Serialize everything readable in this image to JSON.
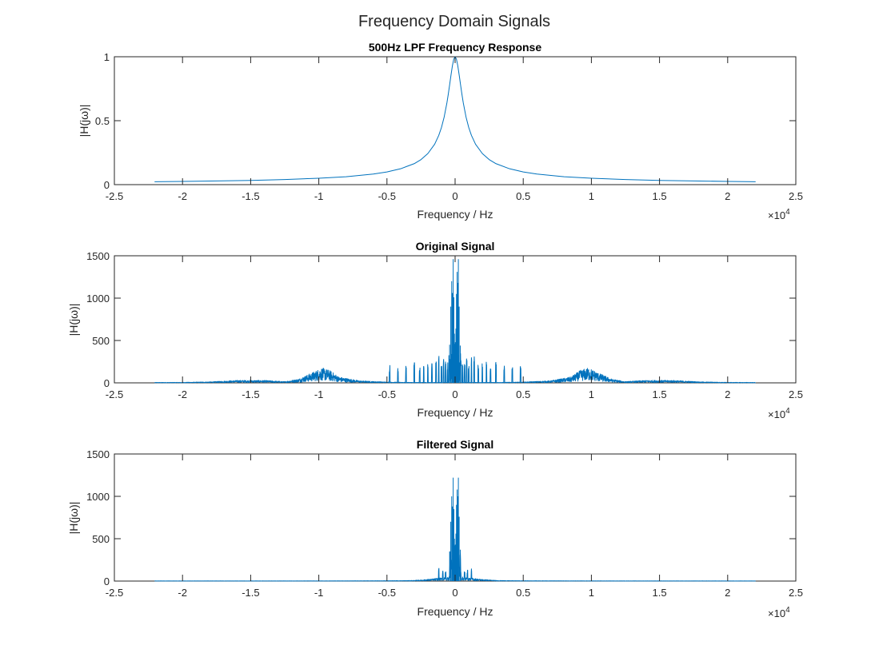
{
  "figure_title": "Frequency Domain Signals",
  "colors": {
    "series": "#0072BD",
    "axis": "#262626",
    "background": "#ffffff"
  },
  "chart_data": [
    {
      "type": "line",
      "title": "500Hz LPF Frequency Response",
      "xlabel": "Frequency / Hz",
      "ylabel": "|H(jω)|",
      "xlim": [
        -25000,
        25000
      ],
      "ylim": [
        0,
        1
      ],
      "xticks": [
        -25000,
        -20000,
        -15000,
        -10000,
        -5000,
        0,
        5000,
        10000,
        15000,
        20000,
        25000
      ],
      "xtick_labels": [
        "-2.5",
        "-2",
        "-1.5",
        "-1",
        "-0.5",
        "0",
        "0.5",
        "1",
        "1.5",
        "2",
        "2.5"
      ],
      "x_exponent_base": "×10",
      "x_exponent_power": "4",
      "yticks": [
        0,
        0.5,
        1
      ],
      "ytick_labels": [
        "0",
        "0.5",
        "1"
      ],
      "grid": false,
      "series": [
        {
          "x": [
            -22050,
            -20000,
            -17500,
            -15000,
            -12500,
            -10000,
            -8000,
            -6000,
            -5000,
            -4000,
            -3000,
            -2500,
            -2000,
            -1500,
            -1200,
            -1000,
            -800,
            -600,
            -500,
            -400,
            -300,
            -200,
            -100,
            0,
            100,
            200,
            300,
            400,
            500,
            600,
            800,
            1000,
            1200,
            1500,
            2000,
            2500,
            3000,
            4000,
            5000,
            6000,
            8000,
            10000,
            12500,
            15000,
            17500,
            20000,
            22050
          ],
          "y": [
            0.023,
            0.025,
            0.029,
            0.033,
            0.04,
            0.05,
            0.062,
            0.083,
            0.099,
            0.124,
            0.164,
            0.196,
            0.243,
            0.316,
            0.385,
            0.447,
            0.53,
            0.64,
            0.707,
            0.781,
            0.857,
            0.928,
            0.981,
            1.0,
            0.981,
            0.928,
            0.857,
            0.781,
            0.707,
            0.64,
            0.53,
            0.447,
            0.385,
            0.316,
            0.243,
            0.196,
            0.164,
            0.124,
            0.099,
            0.083,
            0.062,
            0.05,
            0.04,
            0.033,
            0.029,
            0.025,
            0.023
          ]
        }
      ]
    },
    {
      "type": "line",
      "title": "Original Signal",
      "xlabel": "Frequency / Hz",
      "ylabel": "|H(jω)|",
      "xlim": [
        -25000,
        25000
      ],
      "ylim": [
        0,
        1500
      ],
      "xticks": [
        -25000,
        -20000,
        -15000,
        -10000,
        -5000,
        0,
        5000,
        10000,
        15000,
        20000,
        25000
      ],
      "xtick_labels": [
        "-2.5",
        "-2",
        "-1.5",
        "-1",
        "-0.5",
        "0",
        "0.5",
        "1",
        "1.5",
        "2",
        "2.5"
      ],
      "x_exponent_base": "×10",
      "x_exponent_power": "4",
      "yticks": [
        0,
        500,
        1000,
        1500
      ],
      "ytick_labels": [
        "0",
        "500",
        "1000",
        "1500"
      ],
      "grid": false,
      "spectrum": {
        "x_range": [
          -22050,
          22050
        ],
        "envelope": [
          [
            0,
            5
          ],
          [
            3000,
            5
          ],
          [
            5000,
            10
          ],
          [
            7000,
            25
          ],
          [
            8500,
            70
          ],
          [
            9200,
            150
          ],
          [
            9800,
            180
          ],
          [
            10500,
            120
          ],
          [
            11500,
            45
          ],
          [
            12500,
            15
          ],
          [
            14000,
            30
          ],
          [
            16000,
            30
          ],
          [
            18000,
            12
          ],
          [
            20000,
            6
          ],
          [
            22050,
            5
          ]
        ],
        "bursts": [
          [
            -3000,
            260
          ],
          [
            -2600,
            190
          ],
          [
            -2300,
            250
          ],
          [
            -2000,
            240
          ],
          [
            -1700,
            230
          ],
          [
            -1400,
            320
          ],
          [
            -1200,
            330
          ],
          [
            -1000,
            200
          ],
          [
            -850,
            290
          ],
          [
            -700,
            260
          ],
          [
            -550,
            240
          ],
          [
            -430,
            330
          ],
          [
            3000,
            260
          ],
          [
            2600,
            190
          ],
          [
            2300,
            250
          ],
          [
            2000,
            240
          ],
          [
            1700,
            230
          ],
          [
            1400,
            320
          ],
          [
            1200,
            330
          ],
          [
            1000,
            200
          ],
          [
            850,
            290
          ],
          [
            700,
            260
          ],
          [
            550,
            240
          ],
          [
            430,
            330
          ],
          [
            -4800,
            210
          ],
          [
            -4200,
            180
          ],
          [
            -3600,
            200
          ],
          [
            4800,
            210
          ],
          [
            4200,
            180
          ],
          [
            3600,
            200
          ]
        ],
        "peaks": [
          [
            -400,
            450
          ],
          [
            -320,
            900
          ],
          [
            -250,
            1200
          ],
          [
            -190,
            1060
          ],
          [
            -140,
            1460
          ],
          [
            -90,
            1010
          ],
          [
            -50,
            580
          ],
          [
            -20,
            460
          ],
          [
            20,
            480
          ],
          [
            60,
            640
          ],
          [
            100,
            1050
          ],
          [
            150,
            1310
          ],
          [
            190,
            1180
          ],
          [
            240,
            1460
          ],
          [
            300,
            900
          ],
          [
            380,
            440
          ]
        ]
      }
    },
    {
      "type": "line",
      "title": "Filtered Signal",
      "xlabel": "Frequency / Hz",
      "ylabel": "|H(jω)|",
      "xlim": [
        -25000,
        25000
      ],
      "ylim": [
        0,
        1500
      ],
      "xticks": [
        -25000,
        -20000,
        -15000,
        -10000,
        -5000,
        0,
        5000,
        10000,
        15000,
        20000,
        25000
      ],
      "xtick_labels": [
        "-2.5",
        "-2",
        "-1.5",
        "-1",
        "-0.5",
        "0",
        "0.5",
        "1",
        "1.5",
        "2",
        "2.5"
      ],
      "x_exponent_base": "×10",
      "x_exponent_power": "4",
      "yticks": [
        0,
        500,
        1000,
        1500
      ],
      "ytick_labels": [
        "0",
        "500",
        "1000",
        "1500"
      ],
      "grid": false,
      "spectrum": {
        "x_range": [
          -22050,
          22050
        ],
        "envelope": [
          [
            0,
            60
          ],
          [
            400,
            60
          ],
          [
            600,
            45
          ],
          [
            900,
            40
          ],
          [
            1300,
            35
          ],
          [
            1700,
            25
          ],
          [
            2200,
            18
          ],
          [
            3000,
            8
          ],
          [
            4000,
            5
          ],
          [
            5000,
            4
          ],
          [
            8000,
            3
          ],
          [
            12000,
            2
          ],
          [
            22050,
            2
          ]
        ],
        "bursts": [
          [
            -1200,
            150
          ],
          [
            -900,
            130
          ],
          [
            -700,
            120
          ],
          [
            1200,
            150
          ],
          [
            900,
            130
          ],
          [
            700,
            120
          ]
        ],
        "peaks": [
          [
            -400,
            350
          ],
          [
            -320,
            700
          ],
          [
            -250,
            1000
          ],
          [
            -190,
            880
          ],
          [
            -140,
            1220
          ],
          [
            -90,
            850
          ],
          [
            -50,
            500
          ],
          [
            -20,
            420
          ],
          [
            20,
            430
          ],
          [
            60,
            560
          ],
          [
            100,
            900
          ],
          [
            150,
            1080
          ],
          [
            190,
            1000
          ],
          [
            240,
            1220
          ],
          [
            300,
            760
          ],
          [
            380,
            370
          ]
        ]
      }
    }
  ]
}
